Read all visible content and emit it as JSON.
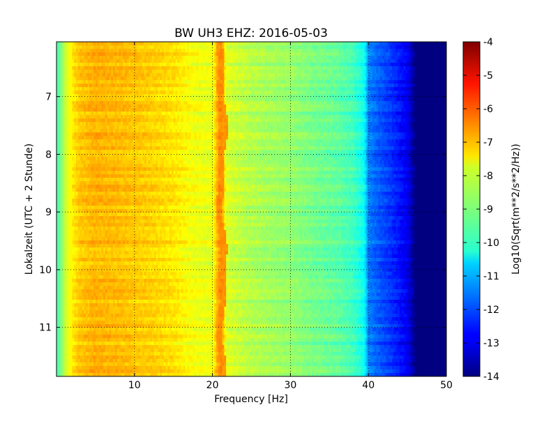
{
  "chart_data": {
    "type": "heatmap",
    "title": "BW UH3 EHZ: 2016-05-03",
    "xlabel": "Frequency [Hz]",
    "ylabel": "Lokalzeit (UTC + 2 Stunde)",
    "colorbar_label": "Log10(Sqrt(m**2/s**2/Hz))",
    "xlim": [
      0,
      50
    ],
    "ylim": [
      11.85,
      6.05
    ],
    "xticks": [
      "10",
      "20",
      "30",
      "40",
      "50"
    ],
    "yticks": [
      "7",
      "8",
      "9",
      "10",
      "11"
    ],
    "colorbar_range": [
      -14,
      -4
    ],
    "colorbar_ticks": [
      "-4",
      "-5",
      "-6",
      "-7",
      "-8",
      "-9",
      "-10",
      "-11",
      "-12",
      "-13",
      "-14"
    ],
    "colormap": "jet",
    "grid": true,
    "grid_style": "dotted",
    "profile": {
      "frequency_hz": [
        0,
        0.5,
        1,
        2,
        3,
        5,
        8,
        12,
        15,
        17,
        19,
        20,
        20.8,
        21.2,
        21.8,
        22.5,
        25,
        28,
        30,
        33,
        36,
        38,
        39.5,
        40,
        41,
        43,
        45,
        46,
        50
      ],
      "log10_psd": [
        -9.5,
        -9.2,
        -8.4,
        -7.6,
        -7.2,
        -7.0,
        -7.1,
        -7.3,
        -7.5,
        -7.8,
        -7.95,
        -7.95,
        -6.7,
        -6.7,
        -8.1,
        -8.2,
        -8.5,
        -8.7,
        -8.8,
        -9.1,
        -9.3,
        -9.6,
        -10.2,
        -11.5,
        -11.8,
        -12.3,
        -12.9,
        -14.0,
        -14.0
      ]
    },
    "spectral_line": {
      "frequency_hz": 21.2,
      "log10_psd": -6.7
    },
    "time_range_h": [
      6.05,
      11.85
    ]
  }
}
